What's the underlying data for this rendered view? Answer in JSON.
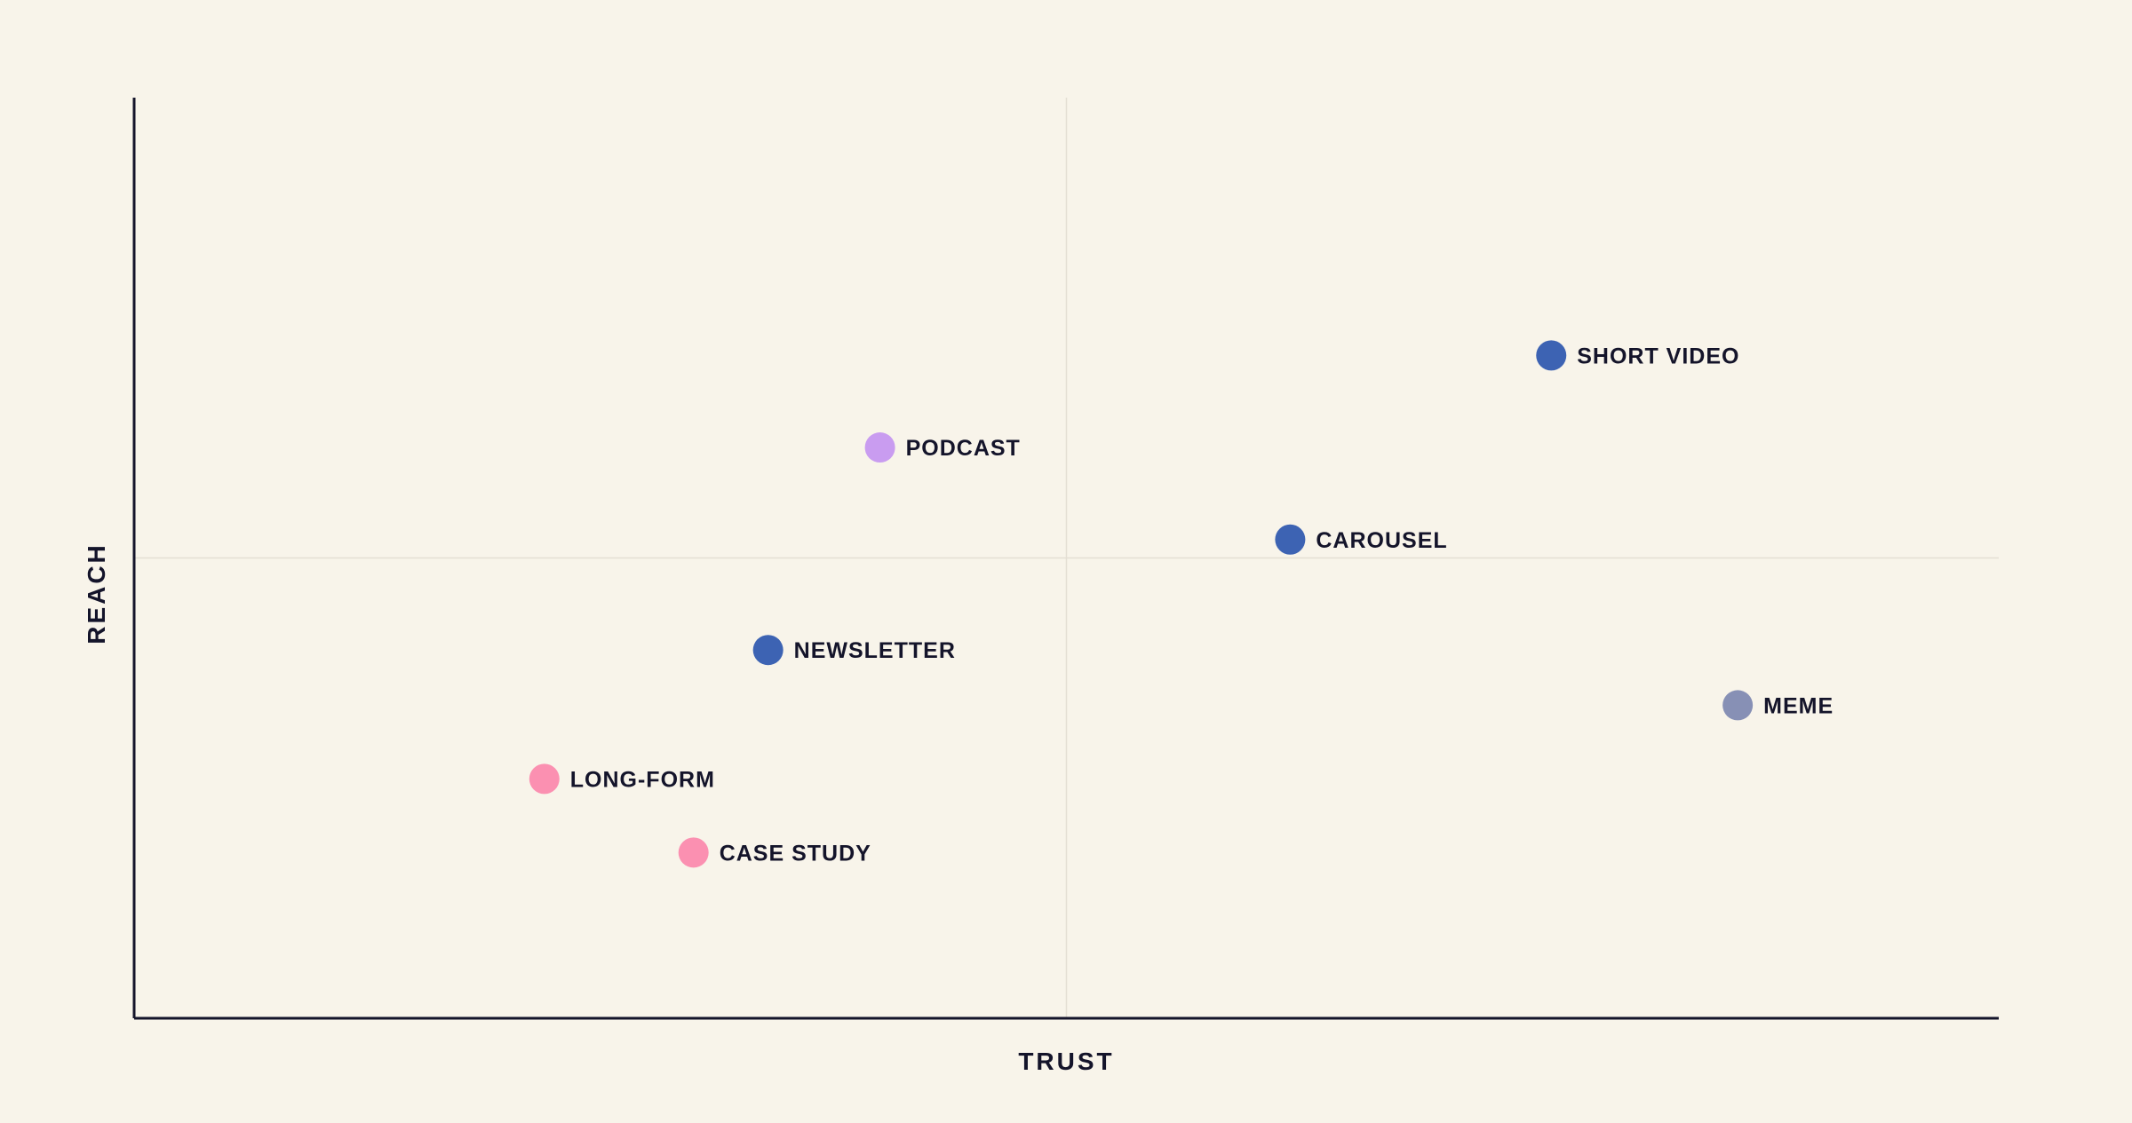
{
  "chart_data": {
    "type": "scatter",
    "title": "",
    "xlabel": "TRUST",
    "ylabel": "REACH",
    "xlim": [
      0,
      100
    ],
    "ylim": [
      0,
      100
    ],
    "grid": false,
    "quadrant_lines": {
      "x": 50,
      "y": 50
    },
    "colors": {
      "background": "#f8f4ea",
      "axis": "#14142a",
      "divider": "#e4dfd4",
      "text": "#14142a"
    },
    "points": [
      {
        "label": "SHORT VIDEO",
        "x": 76,
        "y": 72,
        "color": "#3d63b3"
      },
      {
        "label": "PODCAST",
        "x": 40,
        "y": 62,
        "color": "#c99cf0"
      },
      {
        "label": "CAROUSEL",
        "x": 62,
        "y": 52,
        "color": "#3d63b3"
      },
      {
        "label": "NEWSLETTER",
        "x": 34,
        "y": 40,
        "color": "#3d63b3"
      },
      {
        "label": "MEME",
        "x": 86,
        "y": 34,
        "color": "#8790b5"
      },
      {
        "label": "LONG-FORM",
        "x": 22,
        "y": 26,
        "color": "#fb90b1"
      },
      {
        "label": "CASE STUDY",
        "x": 30,
        "y": 18,
        "color": "#fb90b1"
      }
    ]
  }
}
